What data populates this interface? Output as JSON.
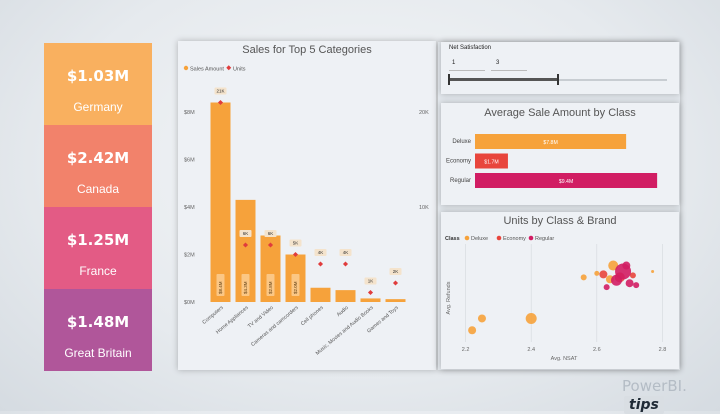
{
  "kpi_tiles": [
    {
      "value": "$1.03M",
      "label": "Germany",
      "color": "#f9b05f"
    },
    {
      "value": "$2.42M",
      "label": "Canada",
      "color": "#f2826b"
    },
    {
      "value": "$1.25M",
      "label": "France",
      "color": "#e35b85"
    },
    {
      "value": "$1.48M",
      "label": "Great Britain",
      "color": "#b0569a"
    }
  ],
  "slicer": {
    "title": "Net Satisfaction",
    "min": "1",
    "max": "3",
    "range_low": 1,
    "range_high": 3,
    "range_min": 1,
    "range_max": 5
  },
  "brand": {
    "text": "PowerBI.",
    "tag": "tips"
  },
  "chart_data": [
    {
      "type": "bar",
      "title": "Sales for Top 5 Categories",
      "legend": [
        "Sales Amount",
        "Units"
      ],
      "categories": [
        "Computers",
        "Home Appliances",
        "TV and Video",
        "Cameras and camcorders",
        "Cell phones",
        "Audio",
        "Music, Movies and Audio Books",
        "Games and Toys"
      ],
      "series": [
        {
          "name": "Sales Amount",
          "axis": "left",
          "color": "#f6a23b",
          "values": [
            8.4,
            4.3,
            2.8,
            2.0,
            0.6,
            0.5,
            0.15,
            0.12
          ],
          "labels": [
            "$8.4M",
            "$4.3M",
            "$2.8M",
            "$2.0M",
            "",
            "",
            "",
            ""
          ]
        },
        {
          "name": "Units",
          "axis": "right",
          "color": "#e03c3c",
          "values": [
            21,
            6,
            6,
            5,
            4,
            4,
            1,
            2
          ],
          "labels": [
            "21K",
            "6K",
            "6K",
            "5K",
            "4K",
            "4K",
            "1K",
            "2K"
          ]
        }
      ],
      "y_left_ticks": [
        "$0M",
        "$2M",
        "$4M",
        "$6M",
        "$8M"
      ],
      "y_left_max": 8.8,
      "y_right_ticks": [
        "10K",
        "20K"
      ],
      "y_right_max": 22
    },
    {
      "type": "bar",
      "orientation": "horizontal",
      "title": "Average Sale Amount by Class",
      "categories": [
        "Deluxe",
        "Economy",
        "Regular"
      ],
      "values": [
        7.8,
        1.7,
        9.4
      ],
      "labels": [
        "$7.8M",
        "$1.7M",
        "$9.4M"
      ],
      "colors": [
        "#f6a23b",
        "#e8453c",
        "#d11d63"
      ],
      "xmax": 9.6
    },
    {
      "type": "scatter",
      "title": "Units by Class & Brand",
      "legend_title": "Class",
      "legend": [
        {
          "name": "Deluxe",
          "color": "#f6a23b"
        },
        {
          "name": "Economy",
          "color": "#e8453c"
        },
        {
          "name": "Regular",
          "color": "#d11d63"
        }
      ],
      "xlabel": "Avg. NSAT",
      "ylabel": "Avg. Refunds",
      "x_ticks": [
        "2.2",
        "2.4",
        "2.6",
        "2.8"
      ],
      "xlim": [
        2.18,
        2.82
      ],
      "ylim": [
        0,
        10
      ],
      "points": [
        {
          "x": 2.22,
          "y": 1.2,
          "r": 4,
          "class": "Deluxe"
        },
        {
          "x": 2.25,
          "y": 2.4,
          "r": 4,
          "class": "Deluxe"
        },
        {
          "x": 2.4,
          "y": 2.4,
          "r": 5.5,
          "class": "Deluxe"
        },
        {
          "x": 2.56,
          "y": 6.6,
          "r": 3,
          "class": "Deluxe"
        },
        {
          "x": 2.77,
          "y": 7.2,
          "r": 1.5,
          "class": "Deluxe"
        },
        {
          "x": 2.6,
          "y": 7.0,
          "r": 2.5,
          "class": "Deluxe"
        },
        {
          "x": 2.64,
          "y": 6.4,
          "r": 4,
          "class": "Deluxe"
        },
        {
          "x": 2.65,
          "y": 7.8,
          "r": 5,
          "class": "Deluxe"
        },
        {
          "x": 2.62,
          "y": 6.9,
          "r": 4,
          "class": "Economy"
        },
        {
          "x": 2.67,
          "y": 6.6,
          "r": 5,
          "class": "Economy"
        },
        {
          "x": 2.71,
          "y": 6.8,
          "r": 3,
          "class": "Economy"
        },
        {
          "x": 2.68,
          "y": 7.2,
          "r": 8,
          "class": "Regular"
        },
        {
          "x": 2.66,
          "y": 6.3,
          "r": 5.5,
          "class": "Regular"
        },
        {
          "x": 2.7,
          "y": 6.0,
          "r": 4,
          "class": "Regular"
        },
        {
          "x": 2.63,
          "y": 5.6,
          "r": 3,
          "class": "Regular"
        },
        {
          "x": 2.69,
          "y": 7.8,
          "r": 4,
          "class": "Regular"
        },
        {
          "x": 2.72,
          "y": 5.8,
          "r": 3,
          "class": "Regular"
        }
      ]
    }
  ]
}
